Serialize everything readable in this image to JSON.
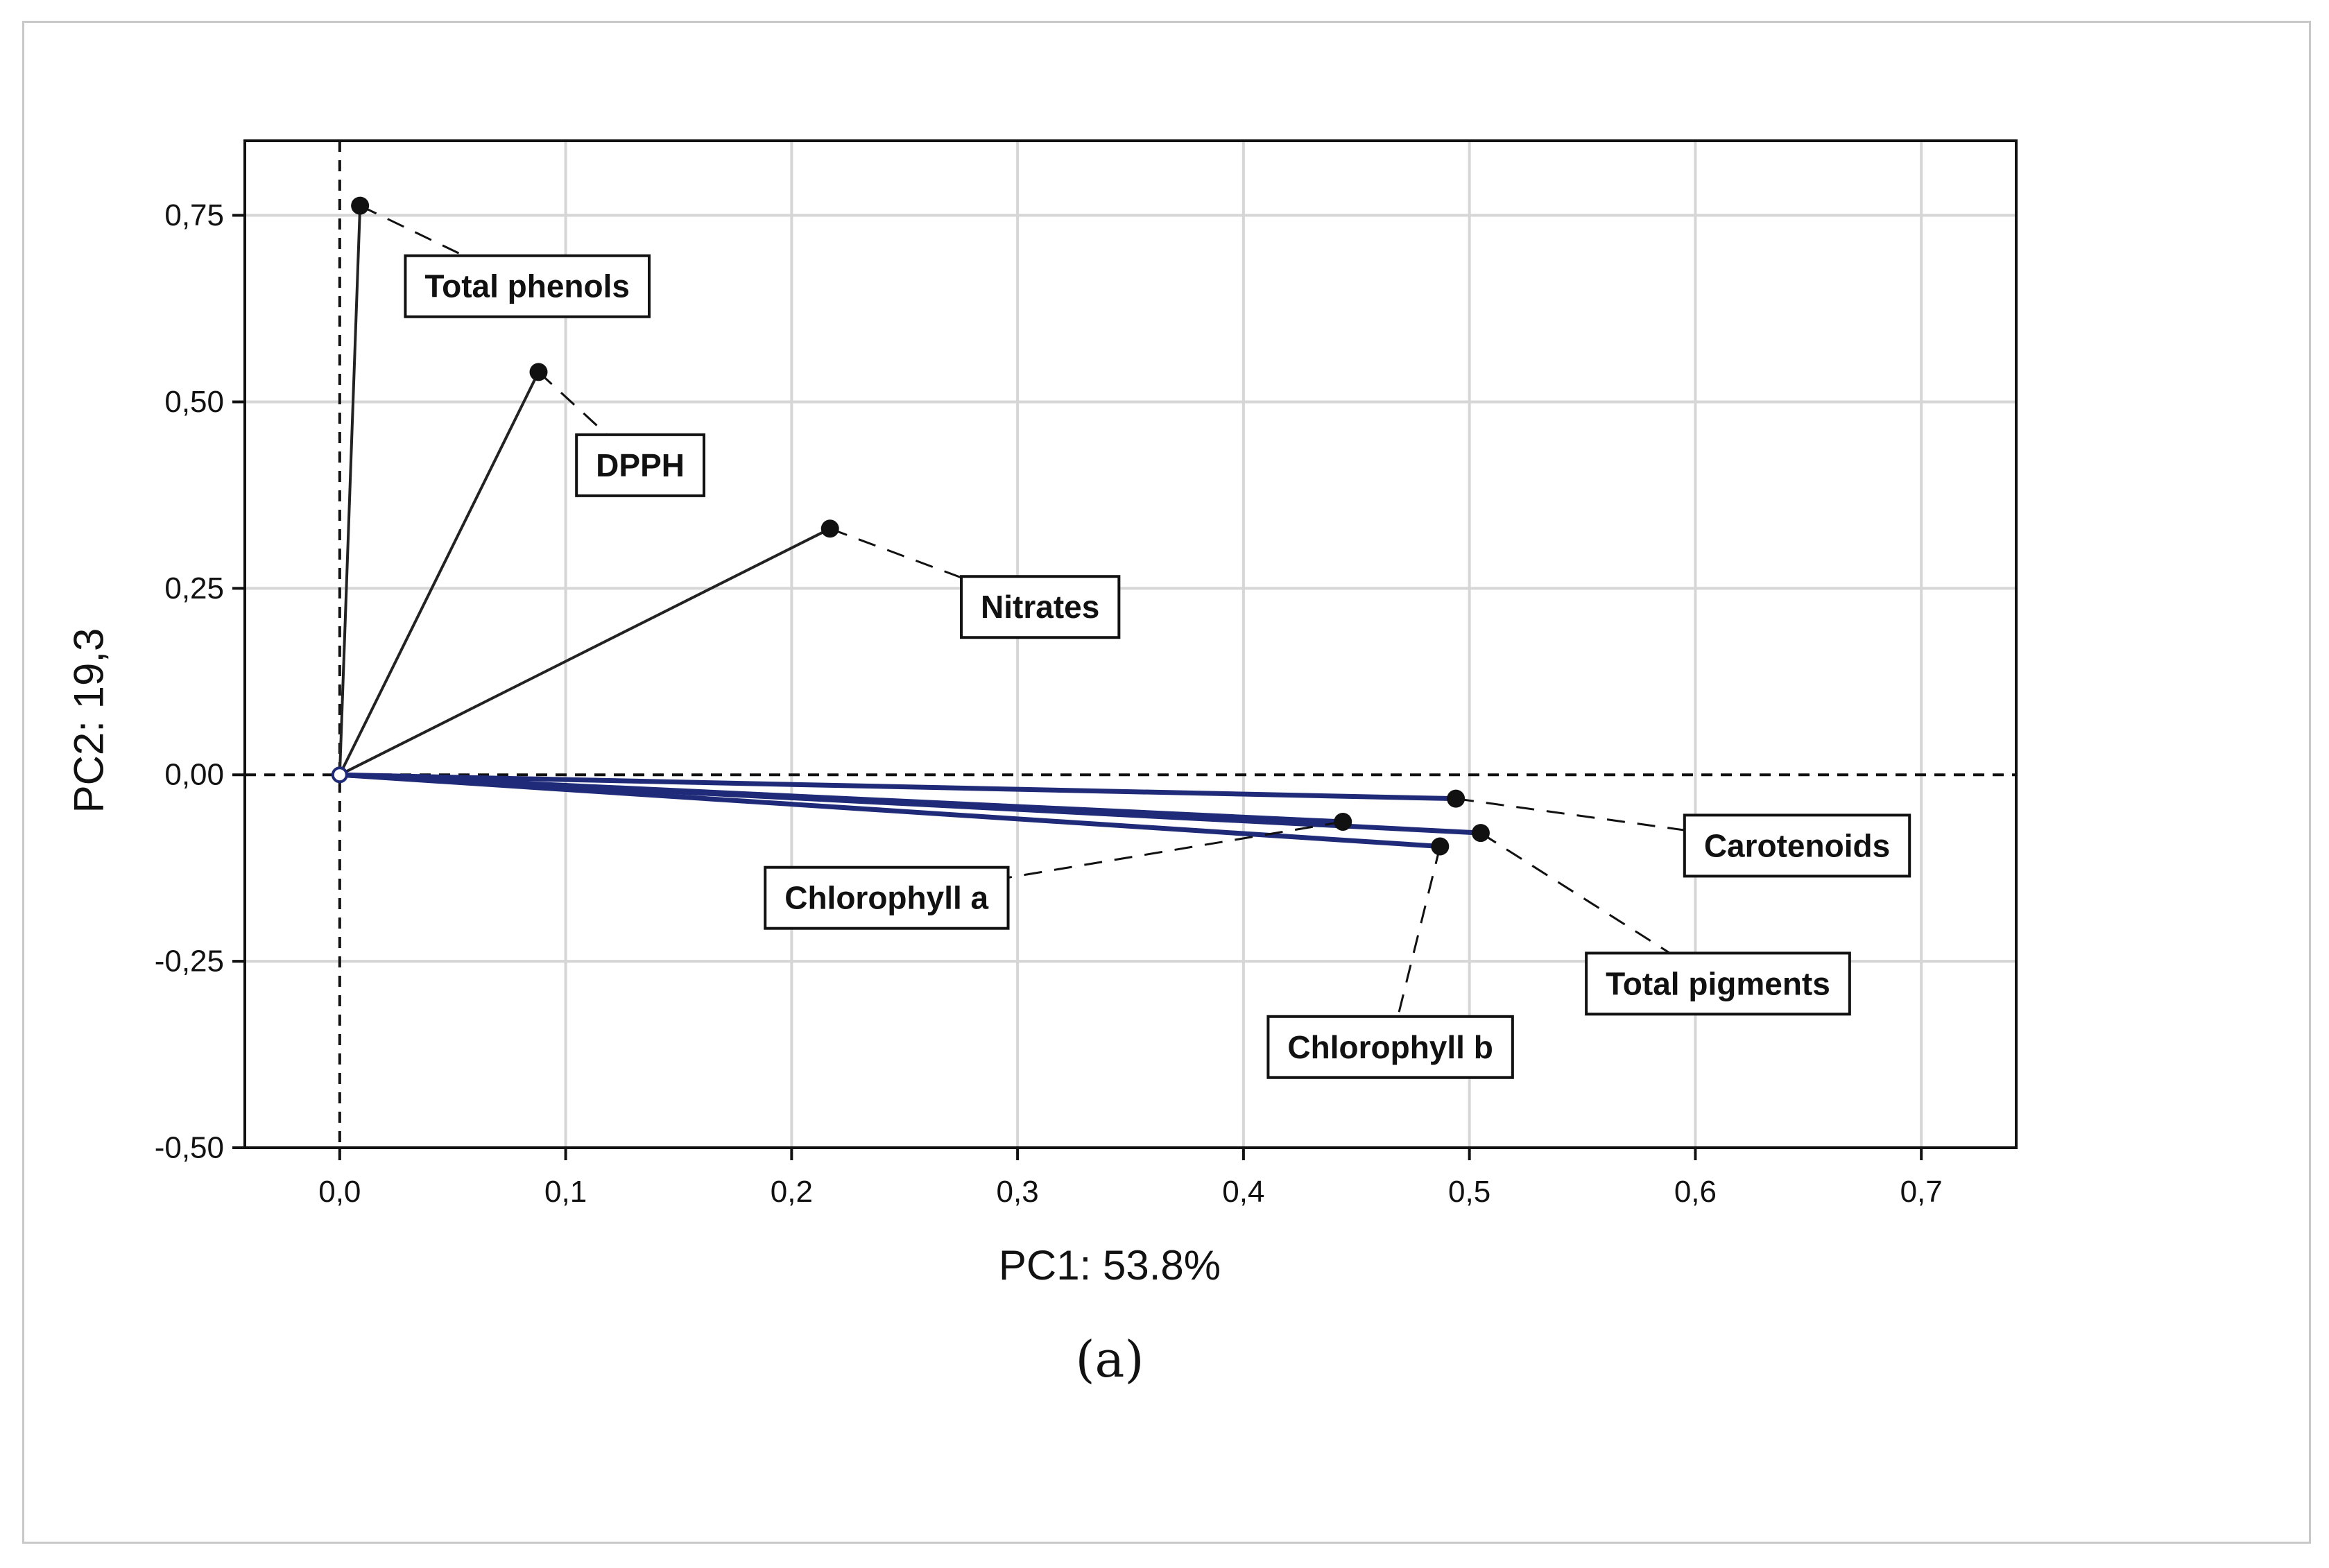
{
  "chart_data": {
    "type": "scatter",
    "subtype": "loading-plot",
    "xlabel": "PC1: 53.8%",
    "ylabel": "PC2: 19,3",
    "panel_label": "(a)",
    "xlim": [
      -0.042,
      0.742
    ],
    "ylim": [
      -0.5,
      0.85
    ],
    "x_ticks": [
      0.0,
      0.1,
      0.2,
      0.3,
      0.4,
      0.5,
      0.6,
      0.7
    ],
    "x_tick_labels": [
      "0,0",
      "0,1",
      "0,2",
      "0,3",
      "0,4",
      "0,5",
      "0,6",
      "0,7"
    ],
    "y_ticks": [
      -0.5,
      -0.25,
      0.0,
      0.25,
      0.5,
      0.75
    ],
    "y_tick_labels": [
      "-0,50",
      "-0,25",
      "0,00",
      "0,25",
      "0,50",
      "0,75"
    ],
    "grid": true,
    "reference_lines": {
      "x": 0,
      "y": 0,
      "style": "dashed"
    },
    "origin": [
      0,
      0
    ],
    "points": [
      {
        "label": "Total phenols",
        "x": 0.009,
        "y": 0.763
      },
      {
        "label": "DPPH",
        "x": 0.088,
        "y": 0.54
      },
      {
        "label": "Nitrates",
        "x": 0.217,
        "y": 0.33
      },
      {
        "label": "Carotenoids",
        "x": 0.494,
        "y": -0.032
      },
      {
        "label": "Chlorophyll a",
        "x": 0.444,
        "y": -0.063
      },
      {
        "label": "Chlorophyll b",
        "x": 0.487,
        "y": -0.096
      },
      {
        "label": "Total pigments",
        "x": 0.505,
        "y": -0.078
      }
    ],
    "label_positions": [
      {
        "x": 0.083,
        "y": 0.655
      },
      {
        "x": 0.133,
        "y": 0.415
      },
      {
        "x": 0.31,
        "y": 0.225
      },
      {
        "x": 0.645,
        "y": -0.095
      },
      {
        "x": 0.242,
        "y": -0.165
      },
      {
        "x": 0.465,
        "y": -0.365
      },
      {
        "x": 0.61,
        "y": -0.28
      }
    ],
    "colors": {
      "vector_pigments": "#1f2a78",
      "vector_other": "#222222",
      "grid": "#d6d6d6",
      "point": "#111111"
    }
  }
}
